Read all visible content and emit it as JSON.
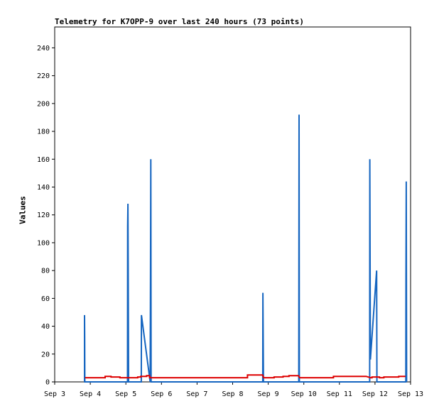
{
  "chart_data": {
    "type": "line",
    "title": "Telemetry for K7OPP-9 over last 240 hours (73 points)",
    "ylabel": "Values",
    "xlabel": "",
    "x_ticks": [
      "Sep 3",
      "Sep 4",
      "Sep 5",
      "Sep 6",
      "Sep 7",
      "Sep 8",
      "Sep 9",
      "Sep 10",
      "Sep 11",
      "Sep 12",
      "Sep 13"
    ],
    "xlim": [
      0,
      240
    ],
    "ylim": [
      0,
      255
    ],
    "y_ticks": [
      0,
      20,
      40,
      60,
      80,
      100,
      120,
      140,
      160,
      180,
      200,
      220,
      240
    ],
    "legend": "none",
    "grid": false,
    "series": [
      {
        "color": "#1565c0",
        "points": [
          [
            20.1,
            0
          ],
          [
            20.1,
            48
          ],
          [
            20.2,
            32
          ],
          [
            20.3,
            0
          ],
          [
            49.1,
            0
          ],
          [
            49.2,
            112
          ],
          [
            49.4,
            128
          ],
          [
            49.6,
            80
          ],
          [
            49.8,
            0
          ],
          [
            58.4,
            0
          ],
          [
            58.5,
            48
          ],
          [
            64.4,
            0
          ],
          [
            64.6,
            80
          ],
          [
            64.8,
            160
          ],
          [
            65.0,
            0
          ],
          [
            140.3,
            0
          ],
          [
            140.4,
            64
          ],
          [
            140.6,
            32
          ],
          [
            140.8,
            0
          ],
          [
            164.6,
            0
          ],
          [
            164.8,
            192
          ],
          [
            165.0,
            0
          ],
          [
            212.4,
            0
          ],
          [
            212.5,
            160
          ],
          [
            212.9,
            16
          ],
          [
            217.1,
            80
          ],
          [
            217.3,
            0
          ],
          [
            236.8,
            0
          ],
          [
            236.9,
            72
          ],
          [
            237.1,
            144
          ],
          [
            237.3,
            0
          ]
        ]
      },
      {
        "color": "#dd0000",
        "points": [
          [
            20.4,
            3
          ],
          [
            34,
            3
          ],
          [
            34,
            4
          ],
          [
            38,
            4
          ],
          [
            38,
            3.5
          ],
          [
            44,
            3.5
          ],
          [
            44,
            3
          ],
          [
            56,
            3
          ],
          [
            56,
            3.5
          ],
          [
            58,
            3.5
          ],
          [
            58,
            4
          ],
          [
            62,
            4
          ],
          [
            62,
            4.5
          ],
          [
            64,
            4.5
          ],
          [
            64,
            3
          ],
          [
            130,
            3
          ],
          [
            130,
            5
          ],
          [
            140.2,
            5
          ],
          [
            140.9,
            3
          ],
          [
            148,
            3
          ],
          [
            148,
            3.5
          ],
          [
            154,
            3.5
          ],
          [
            154,
            4
          ],
          [
            158,
            4
          ],
          [
            158,
            4.5
          ],
          [
            164.4,
            4.5
          ],
          [
            165.2,
            3
          ],
          [
            188,
            3
          ],
          [
            188,
            4
          ],
          [
            210,
            4
          ],
          [
            213,
            3
          ],
          [
            214,
            3
          ],
          [
            214,
            3.5
          ],
          [
            219,
            3.5
          ],
          [
            219,
            3
          ],
          [
            222,
            3
          ],
          [
            222,
            3.5
          ],
          [
            232,
            3.5
          ],
          [
            232,
            4
          ],
          [
            236.6,
            4
          ]
        ]
      }
    ]
  }
}
